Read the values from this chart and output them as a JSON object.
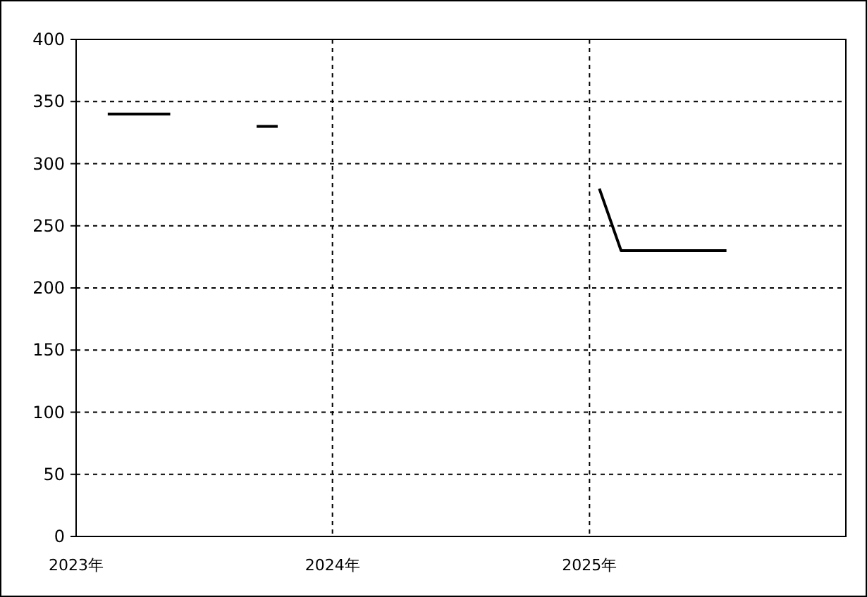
{
  "chart_data": {
    "type": "line",
    "series": [
      {
        "color": "#000000",
        "x": [
          "2023-02-15",
          "2023-03-15",
          "2023-04-15",
          "2023-05-15"
        ],
        "values": [
          340,
          340,
          340,
          340
        ]
      },
      {
        "color": "#000000",
        "x": [
          "2023-09-15",
          "2023-10-15"
        ],
        "values": [
          330,
          330
        ]
      },
      {
        "color": "#000000",
        "x": [
          "2025-01-15",
          "2025-02-15",
          "2025-03-15",
          "2025-04-15",
          "2025-05-15",
          "2025-06-15",
          "2025-07-15"
        ],
        "values": [
          280,
          230,
          230,
          230,
          230,
          230,
          230
        ]
      }
    ],
    "xlim": [
      "2023-01-01",
      "2026-01-01"
    ],
    "xticks": [
      {
        "value": "2023-01-01",
        "label": "2023年"
      },
      {
        "value": "2024-01-01",
        "label": "2024年"
      },
      {
        "value": "2025-01-01",
        "label": "2025年"
      }
    ],
    "ylim": [
      0,
      400
    ],
    "yticks": [
      0,
      50,
      100,
      150,
      200,
      250,
      300,
      350,
      400
    ],
    "grid": true,
    "line_style": "solid",
    "marker": "none"
  }
}
